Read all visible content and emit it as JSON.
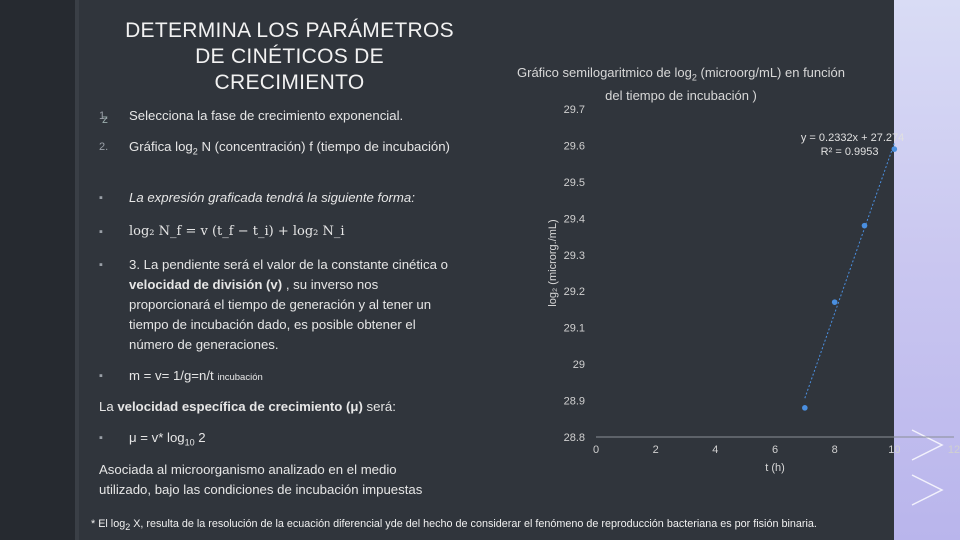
{
  "slide": {
    "title_lines": [
      "DETERMINA LOS PARÁMETROS",
      "DE CINÉTICOS DE",
      "CRECIMIENTO"
    ],
    "items": [
      {
        "bullet": "1.",
        "text": "Selecciona la fase de crecimiento exponencial."
      },
      {
        "bullet": "2.",
        "text_a": "Gráfica log",
        "sub": "2",
        "text_b": " N (concentración) f (tiempo de incubación)"
      },
      {
        "bullet": "▪",
        "text": "La expresión graficada tendrá la siguiente forma:"
      },
      {
        "bullet": "▪",
        "formula": "log₂ N_f = v (t_f − t_i) + log₂ N_i"
      },
      {
        "bullet": "▪",
        "text_a": "3. La pendiente será el valor de la constante cinética o ",
        "bold": "velocidad de división (v)",
        "text_b": " , su inverso nos proporcionará el tiempo de generación y al tener un tiempo de incubación dado, es posible obtener el número de generaciones."
      },
      {
        "bullet": "▪",
        "text_a": "m = v= 1/g=n/t ",
        "small": "incubación"
      }
    ],
    "specific_text_a": "La ",
    "specific_bold": "velocidad específica de crecimiento (μ)",
    "specific_text_b": " será:",
    "mu_bullet": "▪",
    "mu_a": "μ = v* log",
    "mu_sub": "10",
    "mu_b": " 2",
    "assoc_text": "Asociada al microorganismo analizado en el medio utilizado, bajo las condiciones de incubación impuestas",
    "footnote_a": "* El log",
    "footnote_sub": "2",
    "footnote_b": " X, resulta  de la resolución de la ecuación diferencial  yde del hecho de considerar el fenómeno de reproducción bacteriana es por  fisión binaria."
  },
  "chart_data": {
    "type": "scatter",
    "title_a": "Gráfico semilogaritmico de log",
    "title_sub": "2",
    "title_b": " (microorg/mL) en función del tiempo de incubación )",
    "xlabel": "t (h)",
    "ylabel": "log₂ (microrg./mL)",
    "xlim": [
      0,
      12
    ],
    "ylim": [
      28.8,
      29.7
    ],
    "xticks": [
      0,
      2,
      4,
      6,
      8,
      10,
      12
    ],
    "yticks": [
      28.8,
      28.9,
      29,
      29.1,
      29.2,
      29.3,
      29.4,
      29.5,
      29.6,
      29.7
    ],
    "ytick_labels": [
      "28.8",
      "28.9",
      "29",
      "29.1",
      "29.2",
      "29.3",
      "29.4",
      "29.5",
      "29.6",
      "29.7"
    ],
    "points": [
      {
        "x": 7,
        "y": 28.88
      },
      {
        "x": 8,
        "y": 29.17
      },
      {
        "x": 9,
        "y": 29.38
      },
      {
        "x": 10,
        "y": 29.59
      }
    ],
    "trendline": {
      "slope": 0.2332,
      "intercept": 27.274,
      "x_from": 7,
      "x_to": 10
    },
    "equation": "y = 0.2332x + 27.274",
    "r2": "R² = 0.9953",
    "point_color": "#4a8fe0",
    "grid": false
  }
}
